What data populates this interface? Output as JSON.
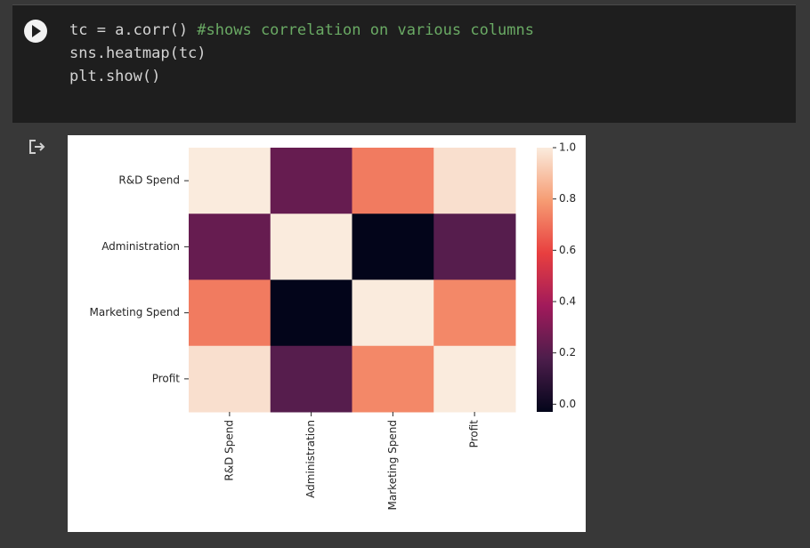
{
  "code": {
    "lines": [
      [
        "tc = a.corr() ",
        "#shows correlation on various columns"
      ],
      [
        "sns.heatmap(tc)"
      ],
      [
        "plt.show()"
      ]
    ]
  },
  "chart_data": {
    "type": "heatmap",
    "x_categories": [
      "R&D Spend",
      "Administration",
      "Marketing Spend",
      "Profit"
    ],
    "y_categories": [
      "R&D Spend",
      "Administration",
      "Marketing Spend",
      "Profit"
    ],
    "values": [
      [
        1.0,
        0.24,
        0.72,
        0.97
      ],
      [
        0.24,
        1.0,
        -0.03,
        0.2
      ],
      [
        0.72,
        -0.03,
        1.0,
        0.75
      ],
      [
        0.97,
        0.2,
        0.75,
        1.0
      ]
    ],
    "colormap": [
      "#03051a",
      "#4c1d4b",
      "#a11a5b",
      "#e83f3f",
      "#f69c73",
      "#faebdd"
    ],
    "clim": [
      -0.03,
      1.0
    ],
    "cticks": [
      {
        "value": 0,
        "label": "0.0"
      },
      0.2,
      0.4,
      0.6,
      0.8,
      {
        "value": 1,
        "label": "1.0"
      }
    ]
  }
}
